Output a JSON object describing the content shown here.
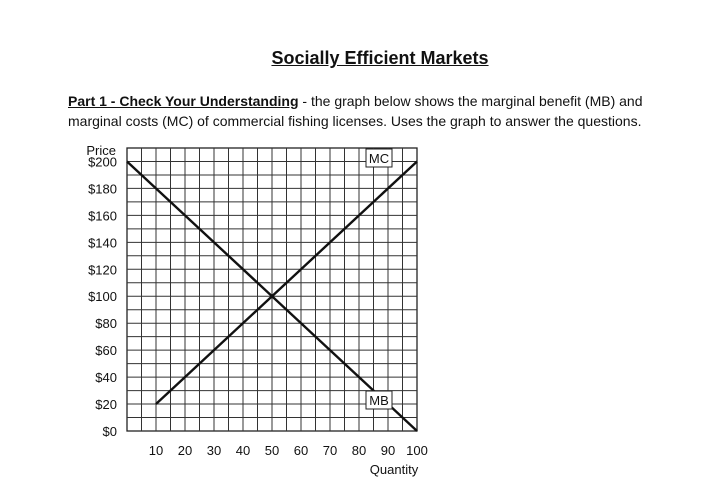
{
  "page": {
    "title": "Socially Efficient Markets",
    "intro_lead": "Part 1 - Check Your Understanding",
    "intro_line1_rest": " - the graph below shows the marginal benefit (MB) and",
    "intro_line2": "marginal costs (MC) of commercial fishing licenses. Uses the graph to answer the questions."
  },
  "chart_data": {
    "type": "line",
    "title": "",
    "xlabel": "Quantity",
    "ylabel": "Price",
    "xlim": [
      0,
      100
    ],
    "ylim": [
      0,
      210
    ],
    "x_ticks": [
      10,
      20,
      30,
      40,
      50,
      60,
      70,
      80,
      90,
      100
    ],
    "x_tick_labels": [
      "10",
      "20",
      "30",
      "40",
      "50",
      "60",
      "70",
      "80",
      "90",
      "100"
    ],
    "y_ticks": [
      0,
      20,
      40,
      60,
      80,
      100,
      120,
      140,
      160,
      180,
      200
    ],
    "y_tick_labels": [
      "$0",
      "$20",
      "$40",
      "$60",
      "$80",
      "$100",
      "$120",
      "$140",
      "$160",
      "$180",
      "$200"
    ],
    "grid": true,
    "series": [
      {
        "name": "MC",
        "x": [
          10,
          100
        ],
        "y": [
          20,
          200
        ]
      },
      {
        "name": "MB",
        "x": [
          0,
          100
        ],
        "y": [
          200,
          0
        ]
      }
    ]
  }
}
